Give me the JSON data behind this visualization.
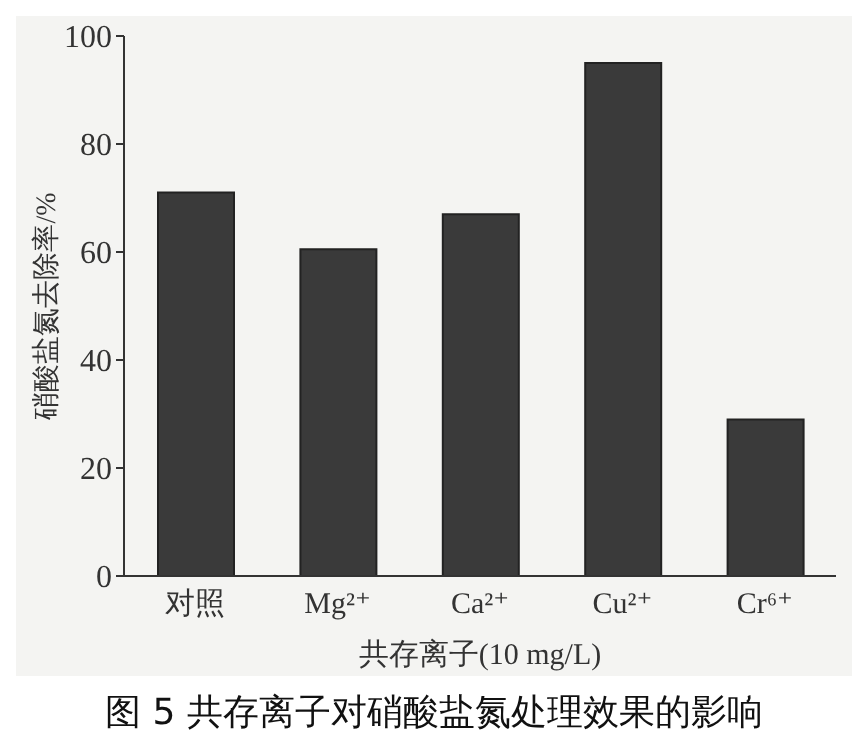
{
  "chart_data": {
    "type": "bar",
    "title": "图 5  共存离子对硝酸盐氮处理效果的影响",
    "xlabel": "共存离子(10 mg/L)",
    "ylabel": "硝酸盐氮去除率/%",
    "categories": [
      "对照",
      "Mg²⁺",
      "Ca²⁺",
      "Cu²⁺",
      "Cr⁶⁺"
    ],
    "values": [
      71,
      60.5,
      67,
      95,
      29
    ],
    "color": "#3a3a3a",
    "ylim": [
      0,
      100
    ],
    "yticks": [
      0,
      20,
      40,
      60,
      80,
      100
    ],
    "grid": false,
    "legend": false
  }
}
